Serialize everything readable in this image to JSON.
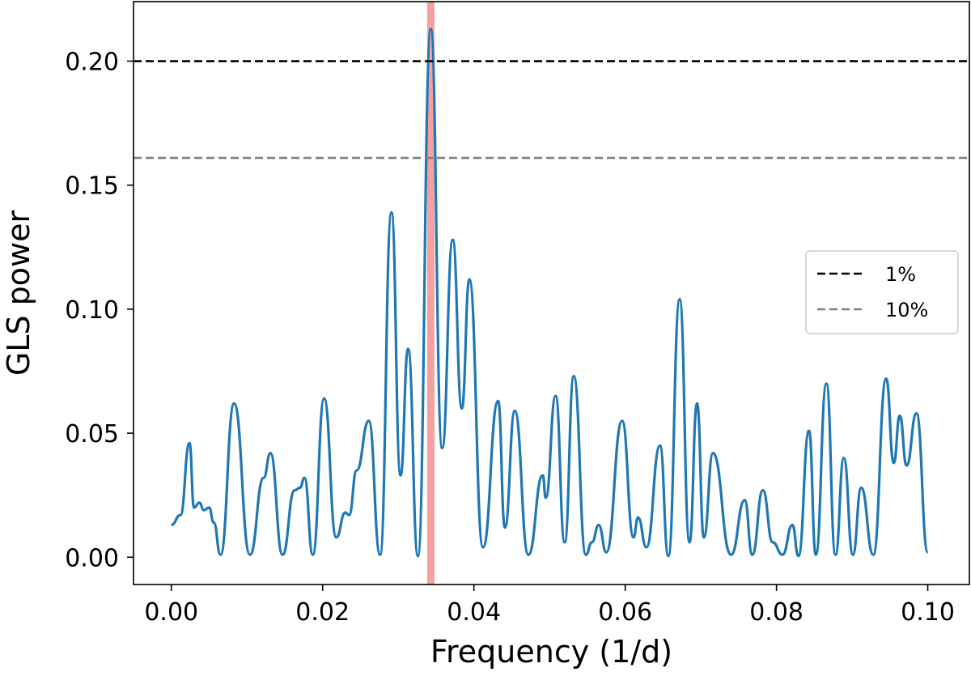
{
  "chart_data": {
    "type": "line",
    "xlabel": "Frequency (1/d)",
    "ylabel": "GLS power",
    "xlim": [
      -0.005,
      0.1055
    ],
    "ylim": [
      -0.011,
      0.224
    ],
    "xticks": [
      0.0,
      0.02,
      0.04,
      0.06,
      0.08,
      0.1
    ],
    "xtick_labels": [
      "0.00",
      "0.02",
      "0.04",
      "0.06",
      "0.08",
      "0.10"
    ],
    "yticks": [
      0.0,
      0.05,
      0.1,
      0.15,
      0.2
    ],
    "ytick_labels": [
      "0.00",
      "0.05",
      "0.10",
      "0.15",
      "0.20"
    ],
    "grid": false,
    "legend_position": "center-right",
    "highlight_x": 0.0343,
    "highlight_color": "#f4a0a0",
    "series": [
      {
        "color": "#1f77b4",
        "peaks": [
          [
            0.0,
            0.013
          ],
          [
            0.0012,
            0.017
          ],
          [
            0.0024,
            0.046
          ],
          [
            0.003,
            0.02
          ],
          [
            0.0037,
            0.022
          ],
          [
            0.0043,
            0.019
          ],
          [
            0.005,
            0.02
          ],
          [
            0.0056,
            0.014
          ],
          [
            0.0065,
            0.001
          ],
          [
            0.0083,
            0.062
          ],
          [
            0.0104,
            0.001
          ],
          [
            0.0122,
            0.032
          ],
          [
            0.0131,
            0.042
          ],
          [
            0.0147,
            0.001
          ],
          [
            0.0163,
            0.027
          ],
          [
            0.017,
            0.028
          ],
          [
            0.0176,
            0.032
          ],
          [
            0.0187,
            0.001
          ],
          [
            0.0202,
            0.064
          ],
          [
            0.0218,
            0.008
          ],
          [
            0.023,
            0.018
          ],
          [
            0.0235,
            0.017
          ],
          [
            0.0245,
            0.035
          ],
          [
            0.0261,
            0.055
          ],
          [
            0.0276,
            0.001
          ],
          [
            0.0291,
            0.139
          ],
          [
            0.0303,
            0.033
          ],
          [
            0.0313,
            0.084
          ],
          [
            0.0326,
            0.0005
          ],
          [
            0.0343,
            0.213
          ],
          [
            0.0358,
            0.044
          ],
          [
            0.0372,
            0.128
          ],
          [
            0.0384,
            0.06
          ],
          [
            0.0394,
            0.112
          ],
          [
            0.0412,
            0.004
          ],
          [
            0.0432,
            0.063
          ],
          [
            0.0441,
            0.012
          ],
          [
            0.0454,
            0.059
          ],
          [
            0.0472,
            0.001
          ],
          [
            0.0491,
            0.033
          ],
          [
            0.0495,
            0.024
          ],
          [
            0.0508,
            0.065
          ],
          [
            0.052,
            0.006
          ],
          [
            0.0532,
            0.073
          ],
          [
            0.0548,
            0.001
          ],
          [
            0.0556,
            0.006
          ],
          [
            0.0565,
            0.013
          ],
          [
            0.0575,
            0.002
          ],
          [
            0.0596,
            0.055
          ],
          [
            0.0611,
            0.008
          ],
          [
            0.0617,
            0.016
          ],
          [
            0.0628,
            0.004
          ],
          [
            0.0646,
            0.045
          ],
          [
            0.0657,
            0.0005
          ],
          [
            0.0672,
            0.104
          ],
          [
            0.0685,
            0.006
          ],
          [
            0.0695,
            0.062
          ],
          [
            0.0704,
            0.008
          ],
          [
            0.0716,
            0.042
          ],
          [
            0.074,
            0.001
          ],
          [
            0.0758,
            0.023
          ],
          [
            0.0768,
            0.001
          ],
          [
            0.0782,
            0.027
          ],
          [
            0.0795,
            0.006
          ],
          [
            0.0808,
            0.001
          ],
          [
            0.0821,
            0.013
          ],
          [
            0.0829,
            0.0005
          ],
          [
            0.0843,
            0.051
          ],
          [
            0.0852,
            0.001
          ],
          [
            0.0866,
            0.07
          ],
          [
            0.0878,
            0.001
          ],
          [
            0.0889,
            0.04
          ],
          [
            0.0901,
            0.001
          ],
          [
            0.0912,
            0.028
          ],
          [
            0.0928,
            0.001
          ],
          [
            0.0945,
            0.072
          ],
          [
            0.0955,
            0.038
          ],
          [
            0.0963,
            0.057
          ],
          [
            0.0972,
            0.037
          ],
          [
            0.0985,
            0.058
          ],
          [
            0.1,
            0.002
          ]
        ]
      }
    ],
    "thresholds": [
      {
        "label": "1%",
        "value": 0.2,
        "color": "#000000"
      },
      {
        "label": "10%",
        "value": 0.161,
        "color": "#808080"
      }
    ]
  }
}
